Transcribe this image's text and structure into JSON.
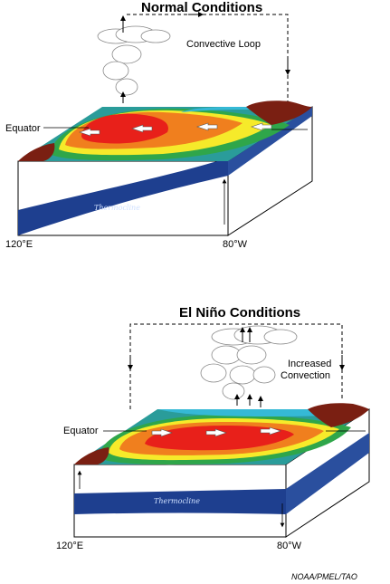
{
  "normal": {
    "title": "Normal Conditions",
    "loop_label": "Convective Loop",
    "equator_label": "Equator",
    "thermocline_label": "Thermocline",
    "lon_left": "120°E",
    "lon_right": "80°W"
  },
  "elnino": {
    "title": "El Niño Conditions",
    "convection_label_line1": "Increased",
    "convection_label_line2": "Convection",
    "equator_label": "Equator",
    "thermocline_label": "Thermocline",
    "lon_left": "120°E",
    "lon_right": "80°W"
  },
  "credit": "NOAA/PMEL/TAO",
  "colors": {
    "warm_red": "#e8201a",
    "orange": "#f07f1e",
    "yellow": "#f6ea2a",
    "green": "#2fa64a",
    "teal": "#2a9c9a",
    "cyan": "#35b9d6",
    "land": "#7a1f12",
    "thermocline_blue": "#1e3f8f"
  }
}
